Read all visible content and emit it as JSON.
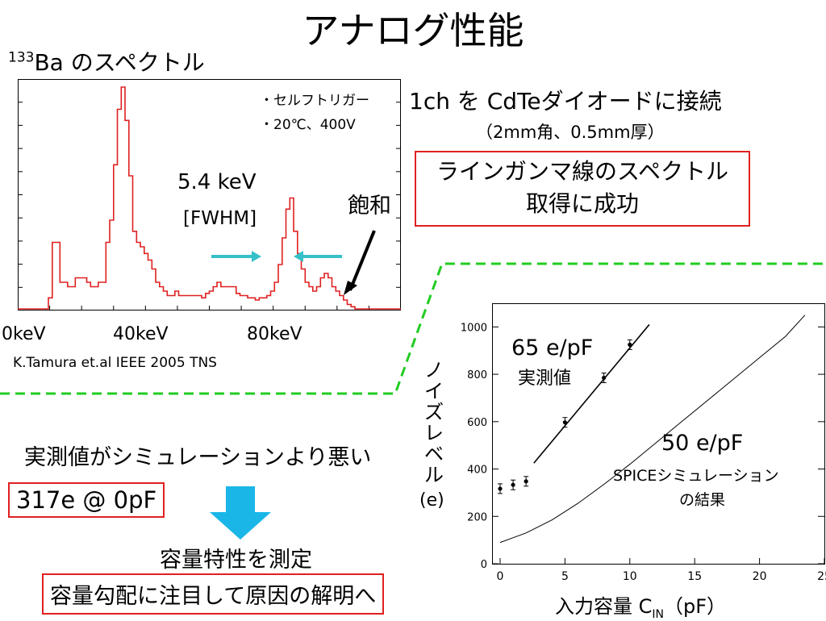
{
  "slide": {
    "title": "アナログ性能",
    "spectrum_title_sup": "133",
    "spectrum_title_main": "Ba のスペクトル",
    "connection": "1ch を CdTeダイオードに接続",
    "connection_sub": "（2mm角、0.5mm厚）",
    "success_box_line1": "ラインガンマ線のスペクトル",
    "success_box_line2": "取得に成功",
    "compare_text": "実測値がシミュレーションより悪い",
    "result_box": "317e @ 0pF",
    "measure_text": "容量特性を測定",
    "goal_box": "容量勾配に注目して原因の解明へ"
  },
  "colors": {
    "accent_red": "#e02020",
    "green_dash": "#22cc22",
    "cyan": "#36c0c8",
    "arrow_blue": "#1ab6e8"
  },
  "icons": {
    "down_arrow": "down-arrow-icon"
  },
  "chart_data": [
    {
      "type": "line",
      "notes": [
        "・セルフトリガー",
        "・20℃、400V"
      ],
      "fwhm_value": "5.4 keV",
      "fwhm_label": "[FWHM]",
      "saturation_label": "飽和",
      "credit": "K.Tamura et.al IEEE 2005 TNS",
      "xlabels": [
        "0keV",
        "40keV",
        "80keV"
      ],
      "xlim": [
        0,
        100
      ],
      "ylim": [
        0,
        100
      ],
      "yaxis_labels": false,
      "line_color": "#e02020",
      "x": [
        0,
        2,
        4,
        6,
        7,
        8,
        9,
        10,
        11,
        12,
        13,
        14,
        15,
        16,
        17,
        18,
        19,
        20,
        21,
        22,
        23,
        24,
        25,
        26,
        27,
        28,
        29,
        30,
        31,
        32,
        33,
        34,
        35,
        36,
        37,
        38,
        39,
        40,
        41,
        42,
        43,
        44,
        45,
        46,
        47,
        48,
        49,
        50,
        51,
        52,
        53,
        54,
        55,
        56,
        57,
        58,
        59,
        60,
        61,
        62,
        63,
        64,
        65,
        66,
        67,
        68,
        69,
        70,
        71,
        72,
        73,
        74,
        75,
        76,
        77,
        78,
        79,
        80,
        81,
        82,
        83,
        84,
        85,
        86,
        87,
        88,
        89,
        90,
        91,
        92,
        93,
        94,
        95,
        96,
        97,
        98,
        99,
        100
      ],
      "y": [
        0,
        0,
        0,
        0,
        0,
        5,
        30,
        30,
        12,
        12,
        10,
        10,
        14,
        14,
        14,
        12,
        10,
        10,
        12,
        12,
        30,
        40,
        65,
        90,
        100,
        85,
        60,
        35,
        30,
        28,
        25,
        22,
        18,
        12,
        10,
        8,
        6,
        6,
        8,
        6,
        6,
        6,
        6,
        6,
        6,
        5,
        7,
        8,
        10,
        12,
        10,
        10,
        10,
        10,
        7,
        6,
        6,
        5,
        5,
        4,
        5,
        5,
        6,
        8,
        12,
        20,
        32,
        45,
        50,
        35,
        25,
        18,
        12,
        10,
        8,
        10,
        14,
        16,
        14,
        10,
        8,
        6,
        4,
        2,
        1,
        0,
        0,
        0,
        0,
        0,
        0,
        0,
        0,
        0,
        0,
        0,
        0,
        0
      ]
    },
    {
      "type": "scatter",
      "y_axis_label": "ノイズレベル",
      "y_unit": "(e)",
      "xlabel_pre": "入力容量 C",
      "xlabel_sub": "IN",
      "xlabel_post": "（pF）",
      "xlim": [
        0,
        25
      ],
      "ylim": [
        0,
        1100
      ],
      "xticks": [
        0,
        5,
        10,
        15,
        20,
        25
      ],
      "yticks": [
        0,
        200,
        400,
        600,
        800,
        1000
      ],
      "series": [
        {
          "x": [
            0,
            1,
            2,
            5,
            8,
            10
          ],
          "y": [
            317,
            333,
            348,
            597,
            785,
            925
          ]
        },
        {
          "x": [
            2.6,
            11.5
          ],
          "y": [
            425,
            1010
          ]
        },
        {
          "x": [
            0,
            2,
            4,
            6,
            8,
            10,
            12,
            14,
            16,
            18,
            20,
            22,
            23.5
          ],
          "y": [
            90,
            130,
            185,
            255,
            335,
            420,
            510,
            600,
            690,
            780,
            870,
            960,
            1050
          ]
        }
      ],
      "measured_label_value": "65 e/pF",
      "measured_label_text": "実測値",
      "sim_label_value": "50 e/pF",
      "sim_label_text_1": "SPICEシミュレーション",
      "sim_label_text_2": "の結果"
    }
  ]
}
